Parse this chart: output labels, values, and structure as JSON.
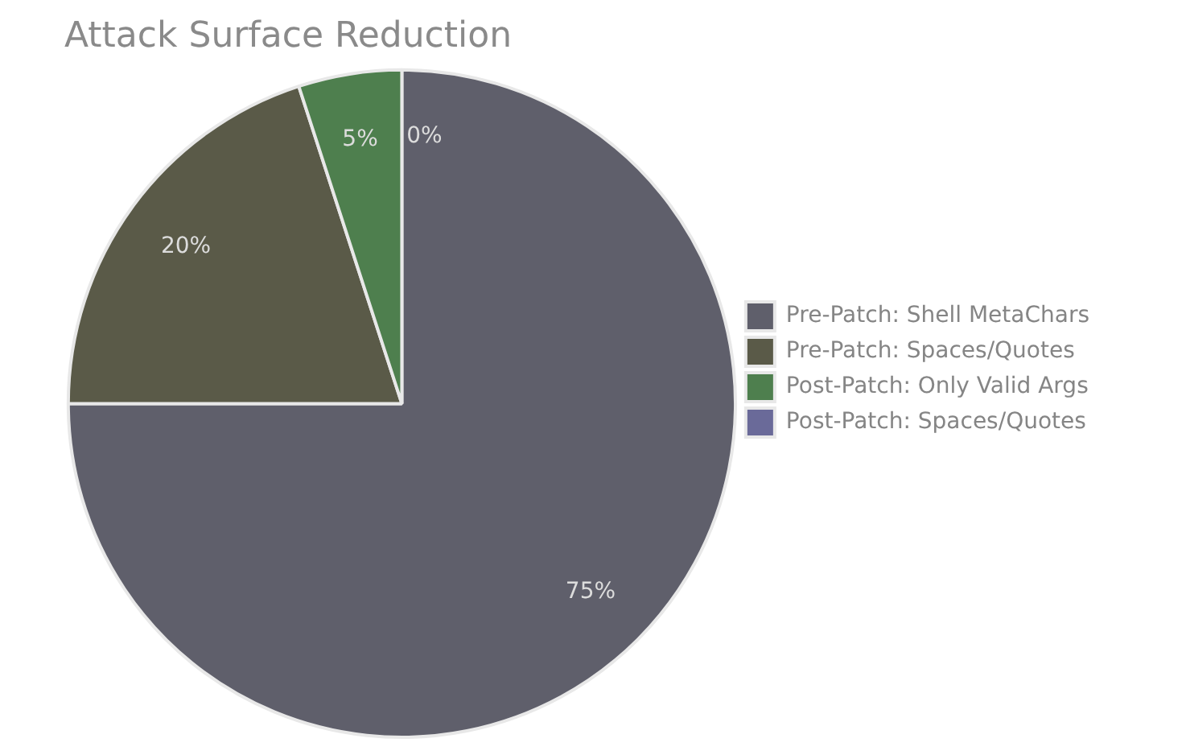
{
  "chart_data": {
    "type": "pie",
    "title": "Attack Surface Reduction",
    "categories": [
      "Pre-Patch: Shell MetaChars",
      "Pre-Patch: Spaces/Quotes",
      "Post-Patch: Only Valid Args",
      "Post-Patch: Spaces/Quotes"
    ],
    "values": [
      75,
      20,
      5,
      0
    ],
    "colors": [
      "#5f5f6b",
      "#5a5a48",
      "#4e7f4e",
      "#6a6a99"
    ],
    "value_labels": [
      "75%",
      "20%",
      "5%",
      "0%"
    ],
    "legend": "right"
  }
}
